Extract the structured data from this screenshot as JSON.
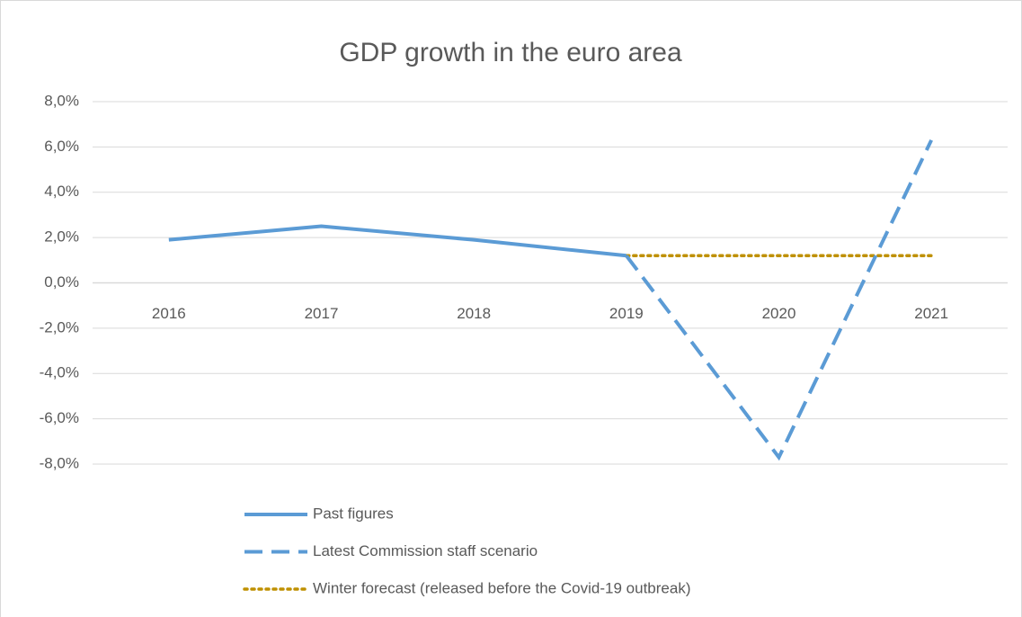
{
  "chart_data": {
    "type": "line",
    "title": "GDP growth in the euro area",
    "categories": [
      "2016",
      "2017",
      "2018",
      "2019",
      "2020",
      "2021"
    ],
    "series": [
      {
        "name": "Past figures",
        "color": "#5b9bd5",
        "style": "solid",
        "values": [
          1.9,
          2.5,
          1.9,
          1.2,
          null,
          null
        ]
      },
      {
        "name": "Latest Commission staff scenario",
        "color": "#5b9bd5",
        "style": "dashed",
        "values": [
          null,
          null,
          null,
          1.2,
          -7.7,
          6.3
        ]
      },
      {
        "name": "Winter forecast (released before the Covid-19 outbreak)",
        "color": "#bf9000",
        "style": "dotted",
        "values": [
          null,
          null,
          null,
          1.2,
          1.2,
          1.2
        ]
      }
    ],
    "ylim": [
      -8,
      8
    ],
    "yticks": [
      {
        "value": -8,
        "label": "-8,0%"
      },
      {
        "value": -6,
        "label": "-6,0%"
      },
      {
        "value": -4,
        "label": "-4,0%"
      },
      {
        "value": -2,
        "label": "-2,0%"
      },
      {
        "value": 0,
        "label": "0,0%"
      },
      {
        "value": 2,
        "label": "2,0%"
      },
      {
        "value": 4,
        "label": "4,0%"
      },
      {
        "value": 6,
        "label": "6,0%"
      },
      {
        "value": 8,
        "label": "8,0%"
      }
    ],
    "grid": true,
    "legend": "bottom"
  }
}
